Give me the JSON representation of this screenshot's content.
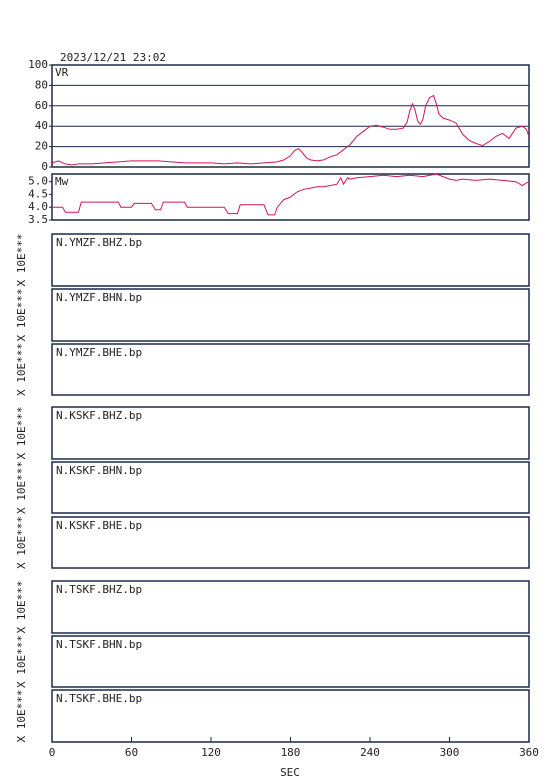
{
  "title": "2023/12/21 23:02",
  "xlim": [
    0,
    360
  ],
  "xticks": [
    0,
    60,
    120,
    180,
    240,
    300,
    360
  ],
  "xlabel": "SEC",
  "chart_data": [
    {
      "type": "line",
      "label": "VR",
      "color": "#d4145a",
      "grid": true,
      "ylim": [
        0,
        100
      ],
      "yticks": [
        0,
        20,
        40,
        60,
        80,
        100
      ],
      "x": [
        0,
        5,
        10,
        15,
        20,
        30,
        40,
        50,
        60,
        70,
        80,
        90,
        100,
        110,
        120,
        130,
        140,
        150,
        160,
        170,
        175,
        180,
        183,
        186,
        189,
        192,
        195,
        200,
        205,
        210,
        215,
        220,
        225,
        230,
        235,
        240,
        245,
        250,
        255,
        260,
        265,
        268,
        270,
        272,
        274,
        276,
        278,
        280,
        282,
        285,
        288,
        290,
        292,
        295,
        300,
        305,
        310,
        315,
        320,
        325,
        330,
        335,
        340,
        345,
        350,
        355,
        358,
        360
      ],
      "values": [
        4,
        6,
        3,
        2,
        3,
        3,
        4,
        5,
        6,
        6,
        6,
        5,
        4,
        4,
        4,
        3,
        4,
        3,
        4,
        5,
        7,
        11,
        16,
        18,
        14,
        9,
        7,
        6,
        7,
        10,
        12,
        17,
        22,
        30,
        35,
        40,
        41,
        39,
        37,
        37,
        38,
        44,
        55,
        62,
        56,
        45,
        42,
        47,
        60,
        68,
        70,
        62,
        52,
        48,
        46,
        43,
        32,
        26,
        23,
        21,
        25,
        30,
        33,
        28,
        38,
        40,
        37,
        30
      ]
    },
    {
      "type": "line",
      "label": "Mw",
      "color": "#d4145a",
      "grid": false,
      "ylim": [
        3.5,
        5.3
      ],
      "yticks": [
        {
          "value": 3.5,
          "label": "3.5"
        },
        {
          "value": 4,
          "label": "4.0"
        },
        {
          "value": 4.5,
          "label": "4.5"
        },
        {
          "value": 5,
          "label": "5.0"
        }
      ],
      "x": [
        0,
        8,
        10,
        20,
        22,
        50,
        52,
        60,
        62,
        75,
        78,
        82,
        84,
        100,
        102,
        130,
        133,
        140,
        142,
        160,
        163,
        168,
        170,
        175,
        180,
        185,
        190,
        195,
        200,
        205,
        210,
        215,
        218,
        220,
        223,
        225,
        230,
        240,
        250,
        260,
        270,
        280,
        290,
        300,
        305,
        310,
        320,
        330,
        340,
        350,
        355,
        358,
        360
      ],
      "values": [
        4.0,
        4.0,
        3.8,
        3.8,
        4.2,
        4.2,
        4.0,
        4.0,
        4.15,
        4.15,
        3.9,
        3.9,
        4.2,
        4.2,
        4.0,
        4.0,
        3.75,
        3.75,
        4.1,
        4.1,
        3.7,
        3.7,
        4.0,
        4.3,
        4.4,
        4.6,
        4.7,
        4.75,
        4.8,
        4.8,
        4.85,
        4.9,
        5.15,
        4.9,
        5.15,
        5.1,
        5.15,
        5.2,
        5.25,
        5.2,
        5.25,
        5.2,
        5.3,
        5.1,
        5.05,
        5.1,
        5.05,
        5.1,
        5.05,
        5.0,
        4.85,
        4.95,
        5.0
      ]
    },
    {
      "type": "waveform",
      "label": "N.YMZF.BHZ.bp",
      "ylabel": "X 10E***"
    },
    {
      "type": "waveform",
      "label": "N.YMZF.BHN.bp",
      "ylabel": "X 10E***"
    },
    {
      "type": "waveform",
      "label": "N.YMZF.BHE.bp",
      "ylabel": "X 10E***"
    },
    {
      "type": "waveform",
      "label": "N.KSKF.BHZ.bp",
      "ylabel": "X 10E***"
    },
    {
      "type": "waveform",
      "label": "N.KSKF.BHN.bp",
      "ylabel": "X 10E***"
    },
    {
      "type": "waveform",
      "label": "N.KSKF.BHE.bp",
      "ylabel": "X 10E***"
    },
    {
      "type": "waveform",
      "label": "N.TSKF.BHZ.bp",
      "ylabel": "X 10E***"
    },
    {
      "type": "waveform",
      "label": "N.TSKF.BHN.bp",
      "ylabel": "X 10E***"
    },
    {
      "type": "waveform",
      "label": "N.TSKF.BHE.bp",
      "ylabel": "X 10E***"
    }
  ]
}
